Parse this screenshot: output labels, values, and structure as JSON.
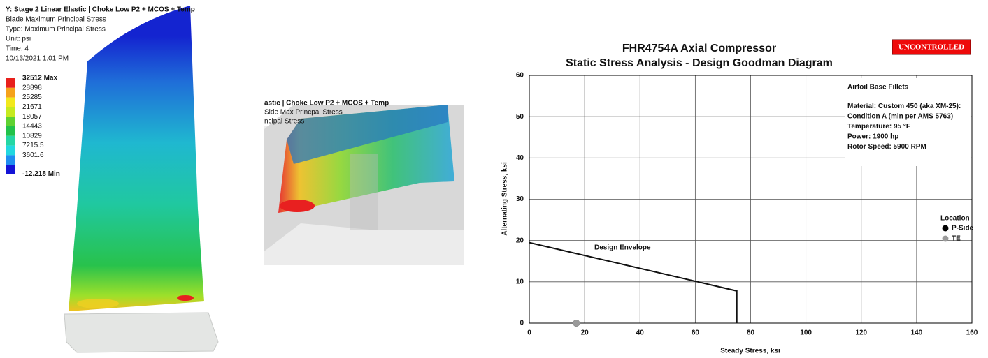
{
  "left_panel": {
    "title": "Y: Stage 2 Linear Elastic | Choke Low P2 + MCOS + Temp",
    "lines": [
      "Blade Maximum Principal Stress",
      "Type: Maximum Principal Stress",
      "Unit: psi",
      "Time: 4",
      "10/13/2021 1:01 PM"
    ],
    "legend": [
      {
        "label": "32512 Max",
        "color": "#e8201c"
      },
      {
        "label": "28898",
        "color": "#f5a21b"
      },
      {
        "label": "25285",
        "color": "#f2e81c"
      },
      {
        "label": "21671",
        "color": "#c6ea1f"
      },
      {
        "label": "18057",
        "color": "#5fd232"
      },
      {
        "label": "14443",
        "color": "#22c24a"
      },
      {
        "label": "10829",
        "color": "#25d6a4"
      },
      {
        "label": "7215.5",
        "color": "#22d8e0"
      },
      {
        "label": "3601.6",
        "color": "#1f8ef0"
      },
      {
        "label": "-12.218 Min",
        "color": "#1414d6"
      }
    ]
  },
  "middle_panel": {
    "lines": [
      "astic | Choke Low P2 + MCOS + Temp",
      "Side Max Princpal Stress",
      "ncipal Stress"
    ]
  },
  "chart_data": {
    "type": "line",
    "title": "FHR4754A Axial Compressor",
    "subtitle": "Static Stress Analysis - Design Goodman Diagram",
    "stamp": "UNCONTROLLED",
    "xlabel": "Steady Stress, ksi",
    "ylabel": "Alternating Stress, ksi",
    "xlim": [
      0,
      160
    ],
    "ylim": [
      0,
      60
    ],
    "xticks": [
      0,
      20,
      40,
      60,
      80,
      100,
      120,
      140,
      160
    ],
    "yticks": [
      0,
      10,
      20,
      30,
      40,
      50,
      60
    ],
    "grid": true,
    "legend_title": "Location",
    "legend": "right",
    "annotation": [
      "Airfoil Base Fillets",
      "Material: Custom 450 (aka XM-25):",
      "Condition A (min per AMS 5763)",
      "Temperature: 95 °F",
      "Power: 1900 hp",
      "Rotor Speed: 5900 RPM"
    ],
    "series": [
      {
        "name": "Design Envelope",
        "color": "#111111",
        "style": "line",
        "x": [
          0,
          75,
          75
        ],
        "values": [
          19.5,
          7.8,
          0
        ]
      },
      {
        "name": "P-Side",
        "color": "#000000",
        "style": "markers",
        "x": [
          17
        ],
        "values": [
          0
        ]
      },
      {
        "name": "TE",
        "color": "#9a9a9a",
        "style": "markers",
        "x": [
          17
        ],
        "values": [
          0
        ]
      }
    ]
  }
}
